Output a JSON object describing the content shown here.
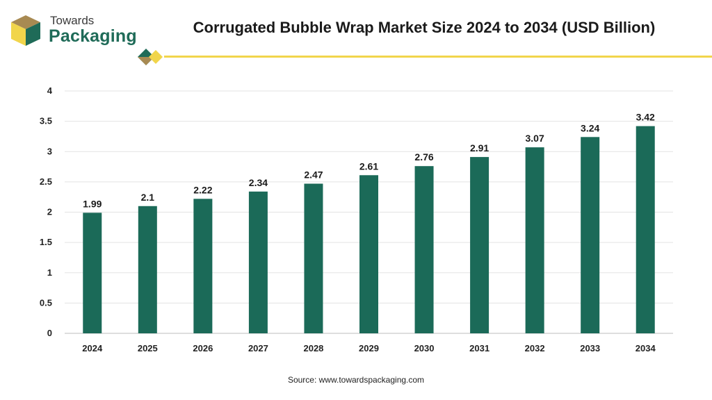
{
  "logo": {
    "line1": "Towards",
    "line2": "Packaging"
  },
  "colors": {
    "bar": "#1b6a58",
    "accent_yellow": "#f1d54b",
    "logo_green": "#1f6b58",
    "logo_brown": "#a88a52"
  },
  "source": "Source: www.towardspackaging.com",
  "chart_data": {
    "type": "bar",
    "title": "Corrugated Bubble Wrap Market Size 2024 to 2034 (USD Billion)",
    "categories": [
      "2024",
      "2025",
      "2026",
      "2027",
      "2028",
      "2029",
      "2030",
      "2031",
      "2032",
      "2033",
      "2034"
    ],
    "values": [
      1.99,
      2.1,
      2.22,
      2.34,
      2.47,
      2.61,
      2.76,
      2.91,
      3.07,
      3.24,
      3.42
    ],
    "value_labels": [
      "1.99",
      "2.1",
      "2.22",
      "2.34",
      "2.47",
      "2.61",
      "2.76",
      "2.91",
      "3.07",
      "3.24",
      "3.42"
    ],
    "ylim": [
      0,
      4
    ],
    "yticks": [
      "0",
      "0.5",
      "1",
      "1.5",
      "2",
      "2.5",
      "3",
      "3.5",
      "4"
    ],
    "grid": true,
    "xlabel": "",
    "ylabel": ""
  }
}
